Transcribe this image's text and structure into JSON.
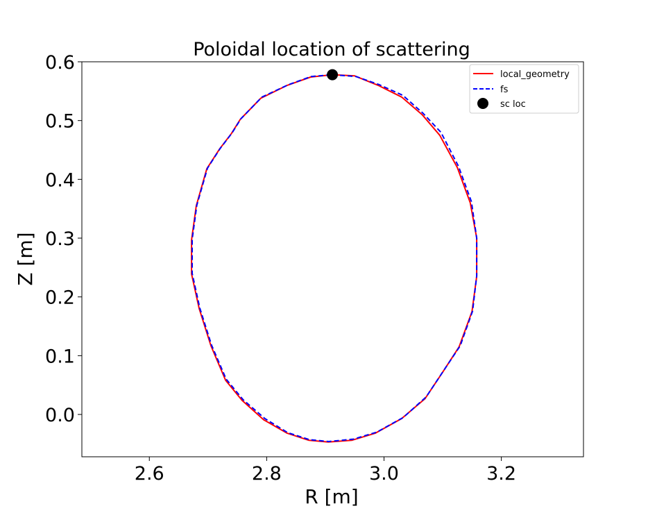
{
  "chart_data": {
    "type": "line",
    "title": "Poloidal location of scattering",
    "xlabel": "R [m]",
    "ylabel": "Z [m]",
    "xlim": [
      2.485,
      3.34
    ],
    "ylim": [
      -0.072,
      0.6
    ],
    "xticks": [
      2.6,
      2.8,
      3.0,
      3.2
    ],
    "xtick_labels": [
      "2.6",
      "2.8",
      "3.0",
      "3.2"
    ],
    "yticks": [
      0.0,
      0.1,
      0.2,
      0.3,
      0.4,
      0.5,
      0.6
    ],
    "ytick_labels": [
      "0.0",
      "0.1",
      "0.2",
      "0.3",
      "0.4",
      "0.5",
      "0.6"
    ],
    "grid": false,
    "legend_position": "top-right",
    "series": [
      {
        "name": "local_geometry",
        "color": "#ff0000",
        "style": "solid",
        "x": [
          2.912,
          2.95,
          2.99,
          3.03,
          3.065,
          3.095,
          3.125,
          3.147,
          3.158,
          3.158,
          3.15,
          3.128,
          3.1,
          3.07,
          3.03,
          2.985,
          2.945,
          2.905,
          2.872,
          2.835,
          2.795,
          2.758,
          2.73,
          2.705,
          2.685,
          2.672,
          2.672,
          2.68,
          2.698,
          2.72,
          2.74,
          2.755,
          2.79,
          2.835,
          2.875,
          2.912
        ],
        "y": [
          0.578,
          0.576,
          0.56,
          0.54,
          0.51,
          0.475,
          0.42,
          0.36,
          0.3,
          0.235,
          0.175,
          0.115,
          0.072,
          0.027,
          -0.007,
          -0.032,
          -0.044,
          -0.047,
          -0.044,
          -0.032,
          -0.009,
          0.024,
          0.058,
          0.117,
          0.18,
          0.239,
          0.297,
          0.355,
          0.418,
          0.452,
          0.478,
          0.502,
          0.538,
          0.56,
          0.574,
          0.578
        ]
      },
      {
        "name": "fs",
        "color": "#0000ff",
        "style": "dashed",
        "x": [
          2.912,
          2.952,
          2.992,
          3.032,
          3.067,
          3.097,
          3.127,
          3.149,
          3.158,
          3.158,
          3.151,
          3.13,
          3.102,
          3.072,
          3.033,
          2.988,
          2.948,
          2.906,
          2.873,
          2.836,
          2.797,
          2.76,
          2.731,
          2.706,
          2.686,
          2.673,
          2.673,
          2.681,
          2.699,
          2.721,
          2.741,
          2.756,
          2.792,
          2.837,
          2.876,
          2.912
        ],
        "y": [
          0.578,
          0.575,
          0.561,
          0.543,
          0.512,
          0.48,
          0.422,
          0.362,
          0.3,
          0.236,
          0.176,
          0.117,
          0.075,
          0.03,
          -0.005,
          -0.03,
          -0.042,
          -0.046,
          -0.043,
          -0.031,
          -0.007,
          0.025,
          0.06,
          0.118,
          0.181,
          0.24,
          0.298,
          0.356,
          0.419,
          0.453,
          0.479,
          0.503,
          0.54,
          0.561,
          0.575,
          0.578
        ]
      },
      {
        "name": "sc loc",
        "color": "#000000",
        "style": "marker",
        "x": [
          2.912
        ],
        "y": [
          0.578
        ]
      }
    ]
  }
}
